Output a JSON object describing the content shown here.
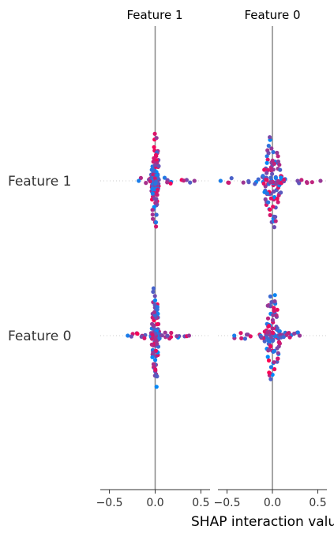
{
  "chart_data": {
    "type": "scatter",
    "xlabel": "SHAP interaction value",
    "row_labels": [
      "Feature 1",
      "Feature 0"
    ],
    "xticks": [
      "−0.5",
      "0.0",
      "0.5"
    ],
    "xlim": [
      -0.6,
      0.6
    ],
    "colors": {
      "low": "#008bfb",
      "high": "#ff0052",
      "guide": "#888888",
      "axis": "#333333"
    },
    "panels": [
      {
        "title": "Feature 1",
        "rows": [
          {
            "label": "Feature 1",
            "min": -0.18,
            "max": 0.43,
            "core_width": 0.03,
            "height_units": 4.6
          },
          {
            "label": "Feature 0",
            "min": -0.3,
            "max": 0.37,
            "core_width": 0.03,
            "height_units": 4.5
          }
        ]
      },
      {
        "title": "Feature 0",
        "rows": [
          {
            "label": "Feature 1",
            "min": -0.57,
            "max": 0.53,
            "core_width": 0.1,
            "height_units": 4.3
          },
          {
            "label": "Feature 0",
            "min": -0.42,
            "max": 0.3,
            "core_width": 0.08,
            "height_units": 4.4
          }
        ]
      }
    ]
  }
}
